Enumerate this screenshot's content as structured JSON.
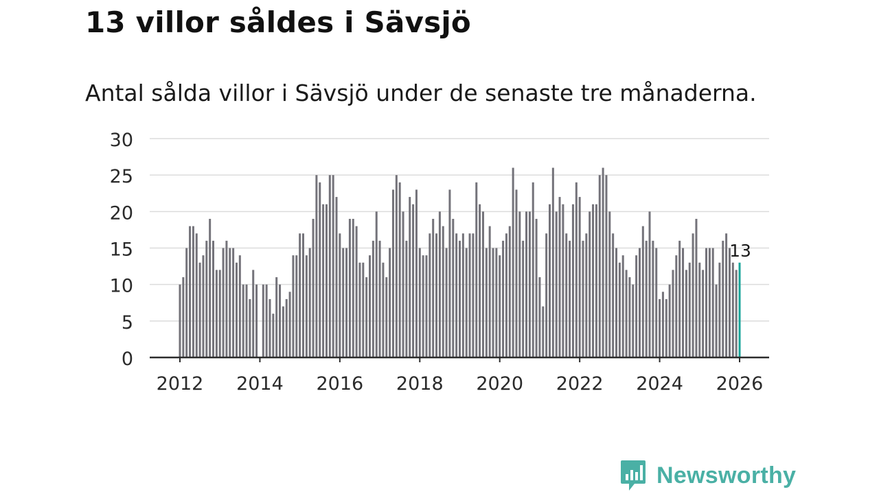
{
  "title": "13 villor såldes i Sävsjö",
  "subtitle": "Antal sålda villor i Sävsjö under de senaste tre månaderna.",
  "brand": {
    "name": "Newsworthy",
    "icon": "newsworthy-logo-icon",
    "color": "#4ab0a5"
  },
  "chart_data": {
    "type": "bar",
    "title": "13 villor såldes i Sävsjö",
    "subtitle": "Antal sålda villor i Sävsjö under de senaste tre månaderna.",
    "xlabel": "",
    "ylabel": "",
    "start": "2012-01",
    "frequency": "monthly",
    "ylim": [
      0,
      30
    ],
    "yticks": [
      0,
      5,
      10,
      15,
      20,
      25,
      30
    ],
    "xticks": [
      2012,
      2014,
      2016,
      2018,
      2020,
      2022,
      2024,
      2026
    ],
    "grid": true,
    "bar_color": "#74737a",
    "highlight_color": "#1aa59a",
    "highlight_label": "13",
    "values": [
      10,
      11,
      15,
      18,
      18,
      17,
      13,
      14,
      16,
      19,
      16,
      12,
      12,
      15,
      16,
      15,
      15,
      13,
      14,
      10,
      10,
      8,
      12,
      10,
      0,
      10,
      10,
      8,
      6,
      11,
      10,
      7,
      8,
      9,
      14,
      14,
      17,
      17,
      14,
      15,
      19,
      25,
      24,
      21,
      21,
      25,
      25,
      22,
      17,
      15,
      15,
      19,
      19,
      18,
      13,
      13,
      11,
      14,
      16,
      20,
      16,
      13,
      11,
      15,
      23,
      25,
      24,
      20,
      16,
      22,
      21,
      23,
      15,
      14,
      14,
      17,
      19,
      17,
      20,
      18,
      15,
      23,
      19,
      17,
      16,
      17,
      15,
      17,
      17,
      24,
      21,
      20,
      15,
      18,
      15,
      15,
      14,
      16,
      17,
      18,
      26,
      23,
      20,
      16,
      20,
      20,
      24,
      19,
      11,
      7,
      17,
      21,
      26,
      20,
      22,
      21,
      17,
      16,
      21,
      24,
      22,
      16,
      17,
      20,
      21,
      21,
      25,
      26,
      25,
      20,
      17,
      15,
      13,
      14,
      12,
      11,
      10,
      14,
      15,
      18,
      16,
      20,
      16,
      15,
      8,
      9,
      8,
      10,
      12,
      14,
      16,
      15,
      12,
      13,
      17,
      19,
      13,
      12,
      15,
      15,
      15,
      10,
      13,
      16,
      17,
      15,
      13,
      12,
      13
    ]
  }
}
